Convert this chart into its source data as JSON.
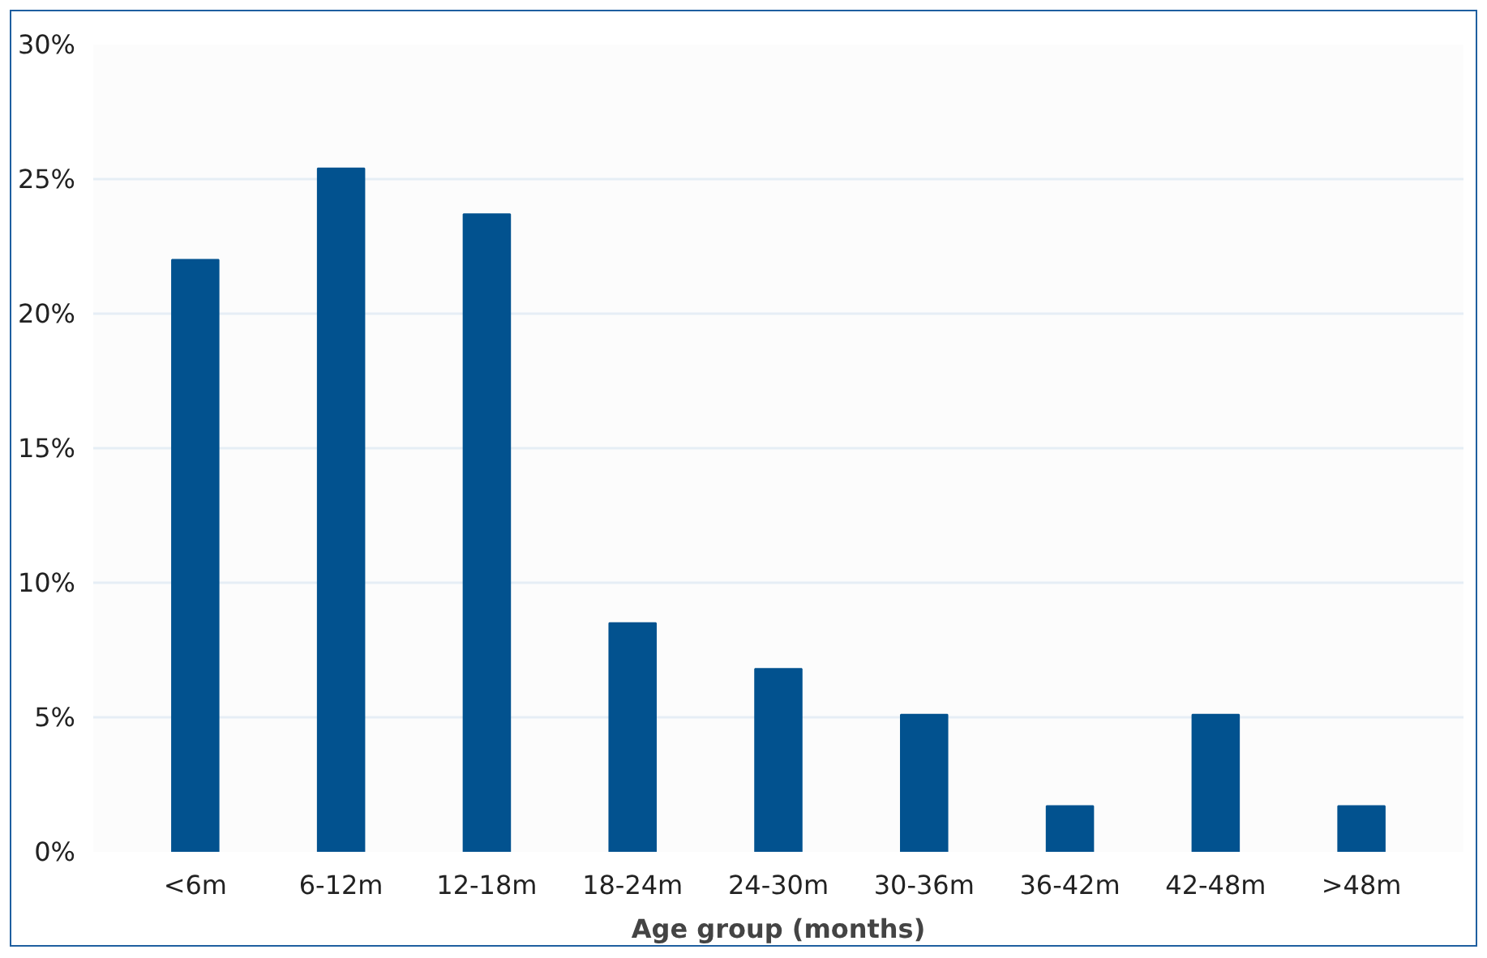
{
  "chart_data": {
    "type": "bar",
    "xlabel": "Age group (months)",
    "categories": [
      "<6m",
      "6-12m",
      "12-18m",
      "18-24m",
      "24-30m",
      "30-36m",
      "36-42m",
      "42-48m",
      ">48m"
    ],
    "values": [
      22.0,
      25.4,
      23.7,
      8.5,
      6.8,
      5.1,
      1.7,
      5.1,
      1.7
    ],
    "color": "#02528f",
    "ylim": [
      0,
      30
    ],
    "yticks": [
      {
        "value": 0,
        "label": "0%"
      },
      {
        "value": 5,
        "label": "5%"
      },
      {
        "value": 10,
        "label": "10%"
      },
      {
        "value": 15,
        "label": "15%"
      },
      {
        "value": 20,
        "label": "20%"
      },
      {
        "value": 25,
        "label": "25%"
      },
      {
        "value": 30,
        "label": "30%"
      }
    ],
    "grid": "y"
  }
}
